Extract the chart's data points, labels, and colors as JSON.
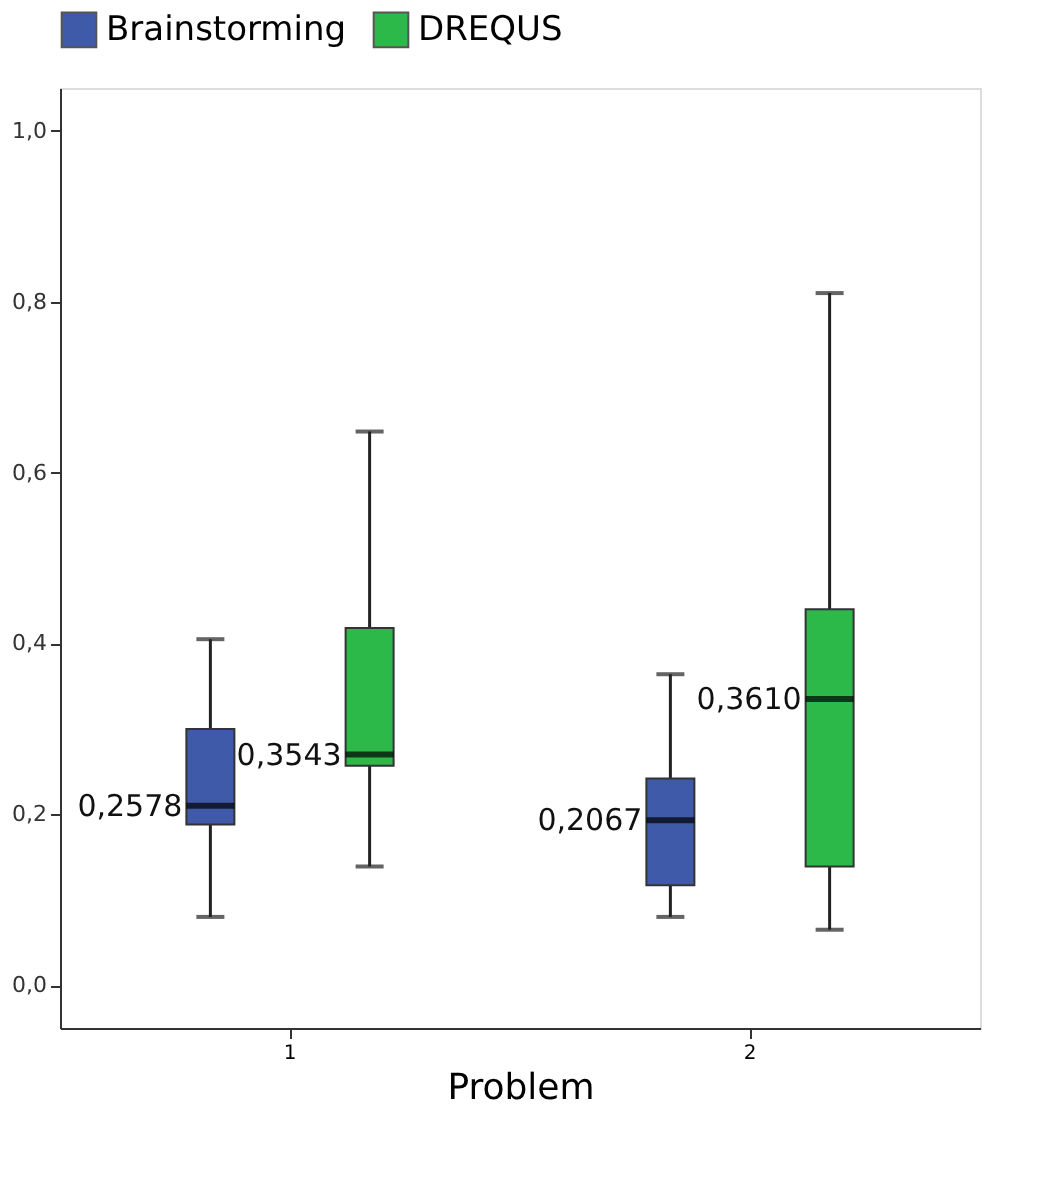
{
  "chart_data": {
    "type": "box",
    "xlabel": "Problem",
    "categories": [
      "1",
      "2"
    ],
    "series": [
      {
        "name": "Brainstorming",
        "color": "#3f5aa9",
        "value_labels": [
          "0,2578",
          "0,2067"
        ],
        "boxes": [
          {
            "low": 0.08,
            "q1": 0.188,
            "median": 0.21,
            "q3": 0.3,
            "high": 0.405
          },
          {
            "low": 0.08,
            "q1": 0.117,
            "median": 0.193,
            "q3": 0.242,
            "high": 0.364
          }
        ]
      },
      {
        "name": "DREQUS",
        "color": "#2db84a",
        "value_labels": [
          "0,3543",
          "0,3610"
        ],
        "boxes": [
          {
            "low": 0.139,
            "q1": 0.257,
            "median": 0.27,
            "q3": 0.418,
            "high": 0.648
          },
          {
            "low": 0.065,
            "q1": 0.139,
            "median": 0.335,
            "q3": 0.44,
            "high": 0.81
          }
        ]
      }
    ],
    "ylim": [
      -0.05,
      1.05
    ],
    "yticks": [
      {
        "value": 0,
        "label": "0,0"
      },
      {
        "value": 0.2,
        "label": "0,2"
      },
      {
        "value": 0.4,
        "label": "0,4"
      },
      {
        "value": 0.6,
        "label": "0,6"
      },
      {
        "value": 0.8,
        "label": "0,8"
      },
      {
        "value": 1.0,
        "label": "1,0"
      }
    ],
    "grid": false,
    "legend": "top"
  }
}
